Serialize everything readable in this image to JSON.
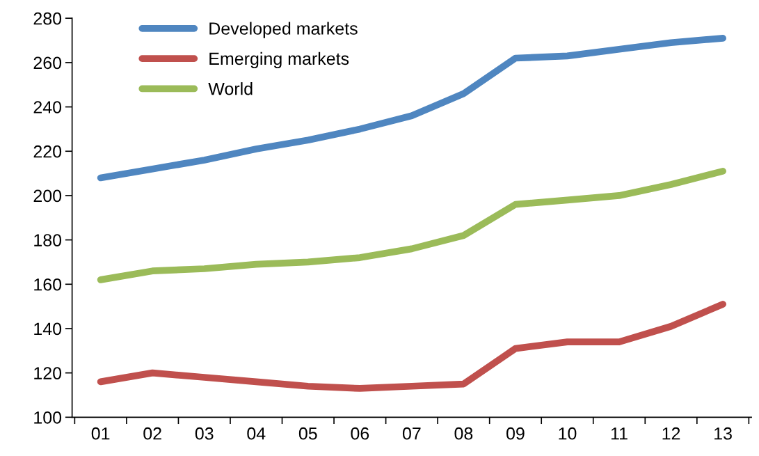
{
  "chart_data": {
    "type": "line",
    "categories": [
      "01",
      "02",
      "03",
      "04",
      "05",
      "06",
      "07",
      "08",
      "09",
      "10",
      "11",
      "12",
      "13"
    ],
    "series": [
      {
        "name": "Developed markets",
        "color": "#4f86c0",
        "values": [
          208,
          212,
          216,
          221,
          225,
          230,
          236,
          246,
          262,
          263,
          266,
          269,
          271
        ]
      },
      {
        "name": "Emerging markets",
        "color": "#c0504d",
        "values": [
          116,
          120,
          118,
          116,
          114,
          113,
          114,
          115,
          131,
          134,
          134,
          141,
          151
        ]
      },
      {
        "name": "World",
        "color": "#9bbb59",
        "values": [
          162,
          166,
          167,
          169,
          170,
          172,
          176,
          182,
          196,
          198,
          200,
          205,
          211
        ]
      }
    ],
    "ylim": [
      100,
      280
    ],
    "yticks": [
      100,
      120,
      140,
      160,
      180,
      200,
      220,
      240,
      260,
      280
    ],
    "grid": false,
    "legend": "top left",
    "marker": "none",
    "line_style": "solid"
  }
}
